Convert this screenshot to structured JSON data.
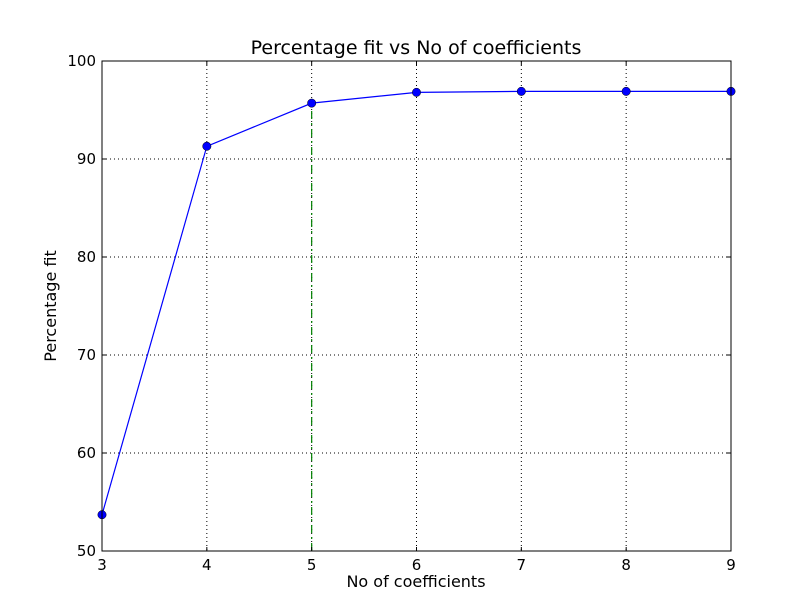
{
  "chart_data": {
    "type": "line",
    "title": "Percentage fit vs No of coefficients",
    "xlabel": "No of coefficients",
    "ylabel": "Percentage fit",
    "xlim": [
      3,
      9
    ],
    "ylim": [
      50,
      100
    ],
    "xticks": [
      3,
      4,
      5,
      6,
      7,
      8,
      9
    ],
    "yticks": [
      50,
      60,
      70,
      80,
      90,
      100
    ],
    "grid": true,
    "series": [
      {
        "x": [
          3,
          4,
          5,
          6,
          7,
          8,
          9
        ],
        "values": [
          53.7,
          91.3,
          95.7,
          96.8,
          96.9,
          96.9,
          96.9
        ],
        "color": "#0000ff",
        "marker": "circle",
        "linestyle": "solid"
      }
    ],
    "vline": {
      "x": 5,
      "y_from": 50,
      "y_to": 95.7,
      "color": "#008000",
      "linestyle": "dashdot"
    }
  }
}
